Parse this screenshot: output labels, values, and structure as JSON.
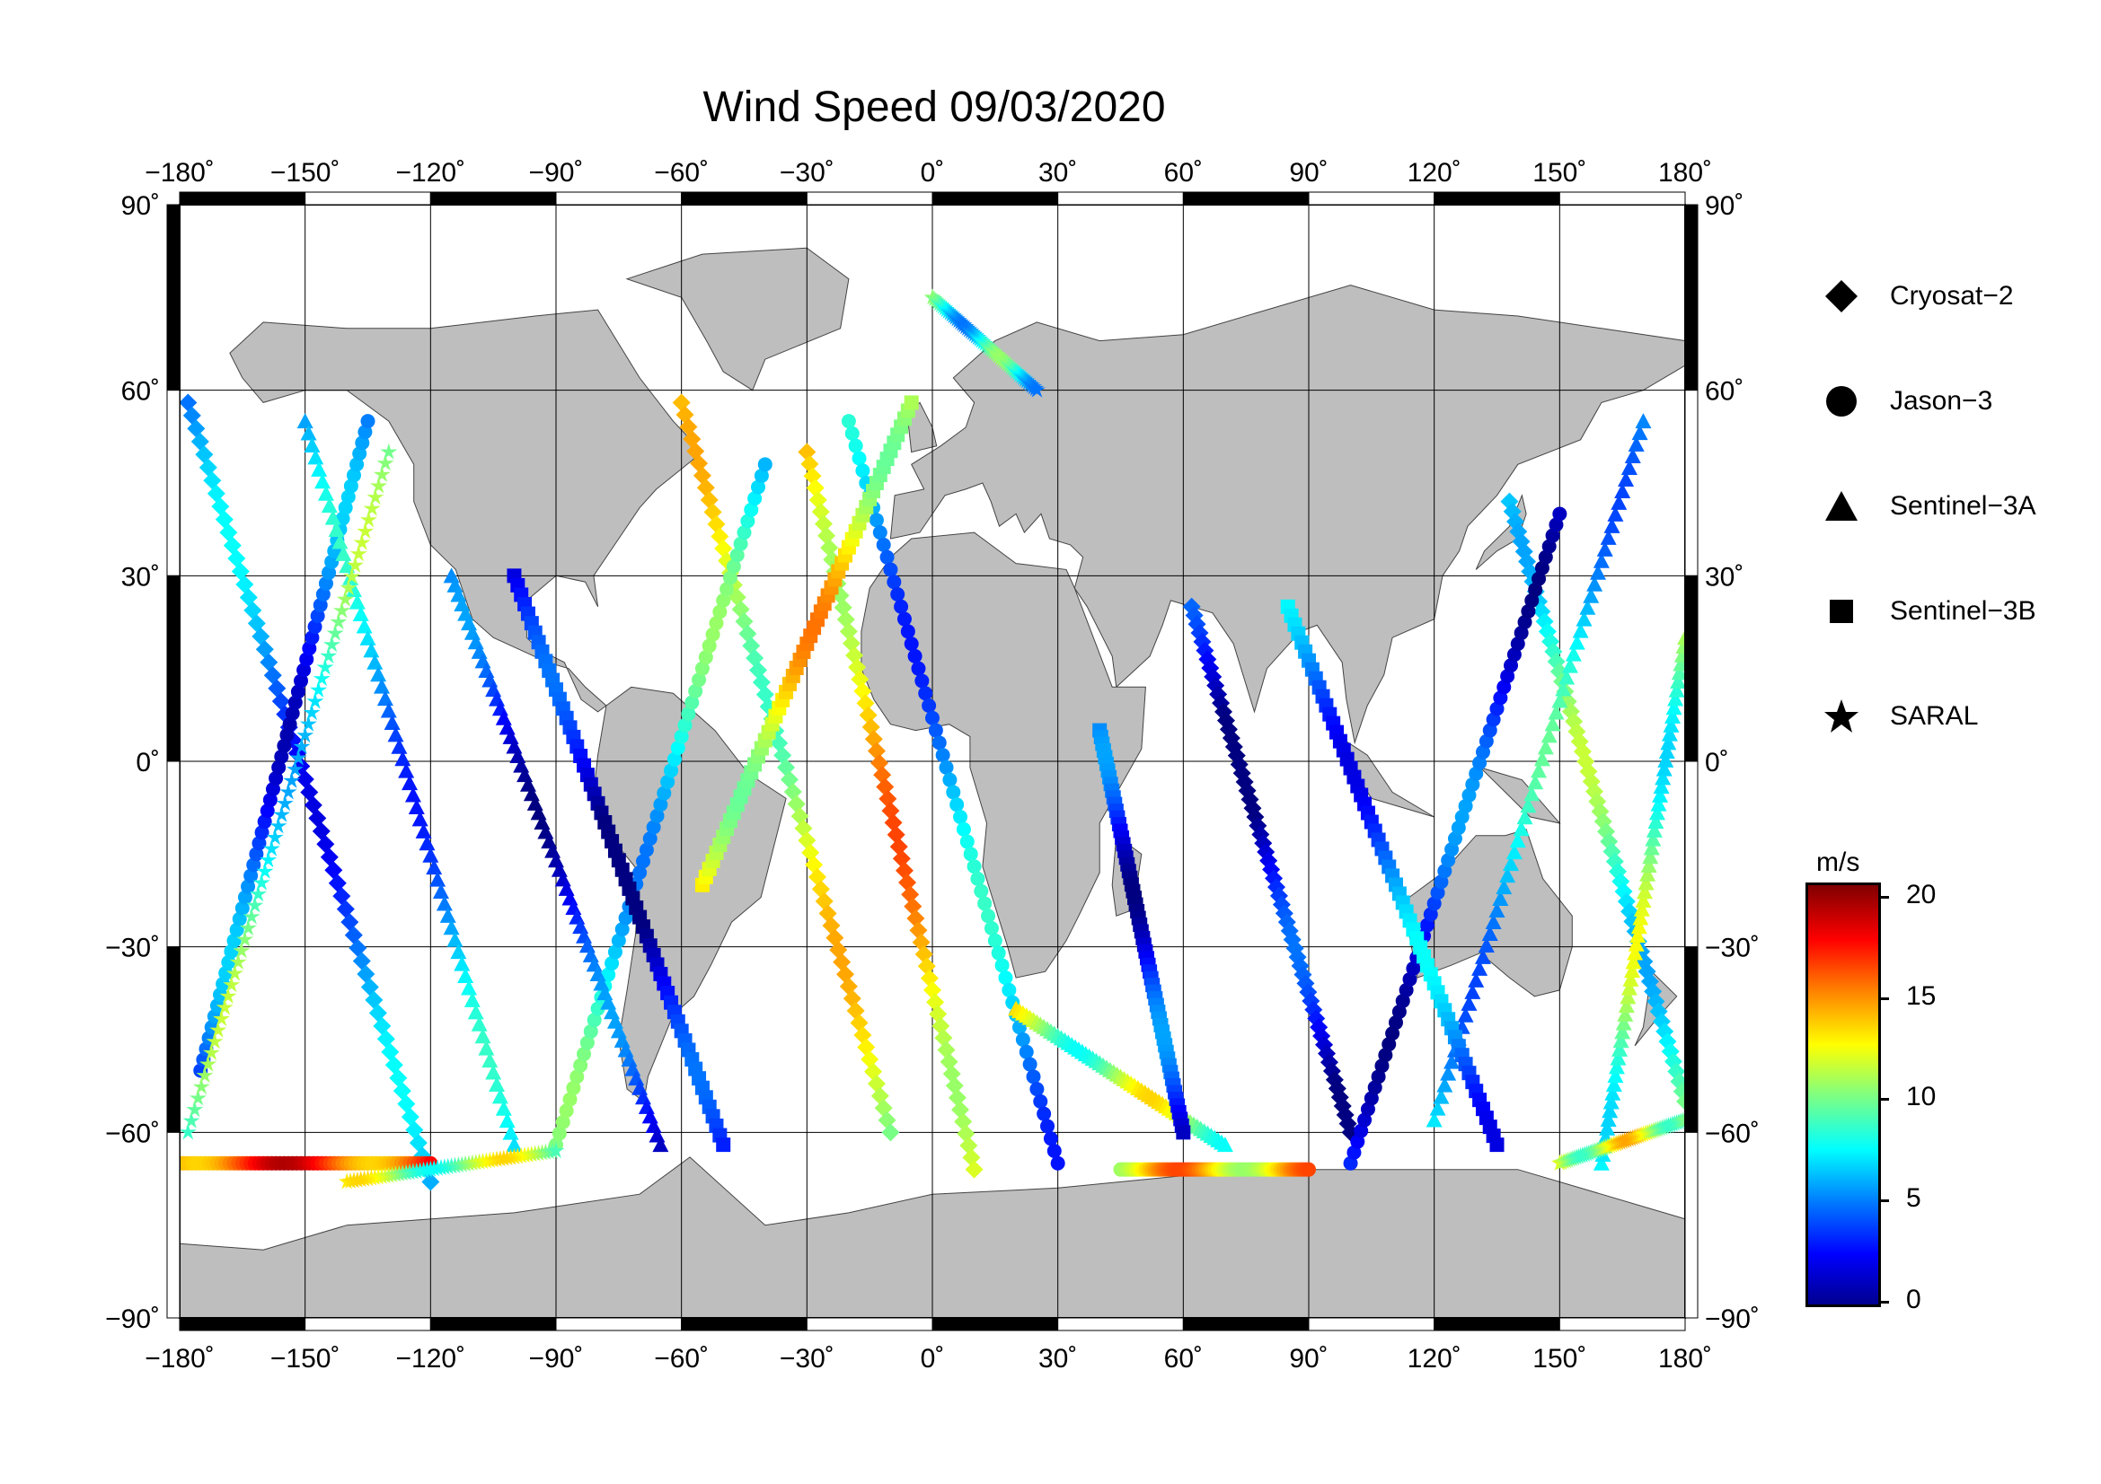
{
  "title": "Wind Speed 09/03/2020",
  "map": {
    "x_ticks": [
      "−180˚",
      "−150˚",
      "−120˚",
      "−90˚",
      "−60˚",
      "−30˚",
      "0˚",
      "30˚",
      "60˚",
      "90˚",
      "120˚",
      "150˚",
      "180˚"
    ],
    "y_ticks": [
      "90˚",
      "60˚",
      "30˚",
      "0˚",
      "−30˚",
      "−60˚",
      "−90˚"
    ],
    "lon_range": [
      -180,
      180
    ],
    "lat_range": [
      -90,
      90
    ],
    "land_color": "#bebebe",
    "ocean_color": "#ffffff"
  },
  "legend": {
    "items": [
      {
        "label": "Cryosat−2",
        "marker": "diamond"
      },
      {
        "label": "Jason−3",
        "marker": "circle"
      },
      {
        "label": "Sentinel−3A",
        "marker": "triangle"
      },
      {
        "label": "Sentinel−3B",
        "marker": "square"
      },
      {
        "label": "SARAL",
        "marker": "star"
      }
    ]
  },
  "colorbar": {
    "unit": "m/s",
    "ticks": [
      "20",
      "15",
      "10",
      "5",
      "0"
    ],
    "range": [
      0,
      21
    ],
    "colormap": "jet"
  },
  "chart_data": {
    "type": "scatter",
    "title": "Wind Speed 09/03/2020",
    "xlabel": "",
    "ylabel": "",
    "xlim": [
      -180,
      180
    ],
    "ylim": [
      -90,
      90
    ],
    "value_unit": "m/s",
    "value_range": [
      0,
      21
    ],
    "series": [
      {
        "name": "Cryosat−2",
        "marker": "diamond",
        "tracks": [
          {
            "from": [
              -178,
              58
            ],
            "to": [
              -120,
              -68
            ],
            "speed": 5
          },
          {
            "from": [
              -60,
              58
            ],
            "to": [
              -10,
              -60
            ],
            "speed": 12
          },
          {
            "from": [
              62,
              25
            ],
            "to": [
              100,
              -60
            ],
            "speed": 2
          },
          {
            "from": [
              -30,
              50
            ],
            "to": [
              10,
              -66
            ],
            "speed": 14
          },
          {
            "from": [
              138,
              42
            ],
            "to": [
              180,
              -55
            ],
            "speed": 9
          }
        ]
      },
      {
        "name": "Jason−3",
        "marker": "circle",
        "tracks": [
          {
            "from": [
              -175,
              -50
            ],
            "to": [
              -135,
              55
            ],
            "speed": 4
          },
          {
            "from": [
              -90,
              -62
            ],
            "to": [
              -40,
              48
            ],
            "speed": 8
          },
          {
            "from": [
              -20,
              55
            ],
            "to": [
              30,
              -65
            ],
            "speed": 6
          },
          {
            "from": [
              100,
              -65
            ],
            "to": [
              150,
              40
            ],
            "speed": 3
          },
          {
            "from": [
              -180,
              -65
            ],
            "to": [
              -120,
              -65
            ],
            "speed": 17
          },
          {
            "from": [
              45,
              -66
            ],
            "to": [
              90,
              -66
            ],
            "speed": 14
          }
        ]
      },
      {
        "name": "Sentinel−3A",
        "marker": "triangle",
        "tracks": [
          {
            "from": [
              -150,
              55
            ],
            "to": [
              -100,
              -62
            ],
            "speed": 6
          },
          {
            "from": [
              -115,
              30
            ],
            "to": [
              -65,
              -62
            ],
            "speed": 3
          },
          {
            "from": [
              20,
              -40
            ],
            "to": [
              70,
              -62
            ],
            "speed": 11
          },
          {
            "from": [
              120,
              -58
            ],
            "to": [
              170,
              55
            ],
            "speed": 7
          },
          {
            "from": [
              160,
              -65
            ],
            "to": [
              180,
              20
            ],
            "speed": 10
          }
        ]
      },
      {
        "name": "Sentinel−3B",
        "marker": "square",
        "tracks": [
          {
            "from": [
              -100,
              30
            ],
            "to": [
              -50,
              -62
            ],
            "speed": 2
          },
          {
            "from": [
              40,
              5
            ],
            "to": [
              60,
              -60
            ],
            "speed": 3
          },
          {
            "from": [
              85,
              25
            ],
            "to": [
              135,
              -62
            ],
            "speed": 5
          },
          {
            "from": [
              -55,
              -20
            ],
            "to": [
              -5,
              58
            ],
            "speed": 13
          }
        ]
      },
      {
        "name": "SARAL",
        "marker": "star",
        "tracks": [
          {
            "from": [
              -178,
              -60
            ],
            "to": [
              -130,
              50
            ],
            "speed": 9
          },
          {
            "from": [
              -140,
              -68
            ],
            "to": [
              -90,
              -63
            ],
            "speed": 11
          },
          {
            "from": [
              0,
              75
            ],
            "to": [
              25,
              60
            ],
            "speed": 8
          },
          {
            "from": [
              150,
              -65
            ],
            "to": [
              180,
              -58
            ],
            "speed": 12
          }
        ]
      }
    ]
  }
}
